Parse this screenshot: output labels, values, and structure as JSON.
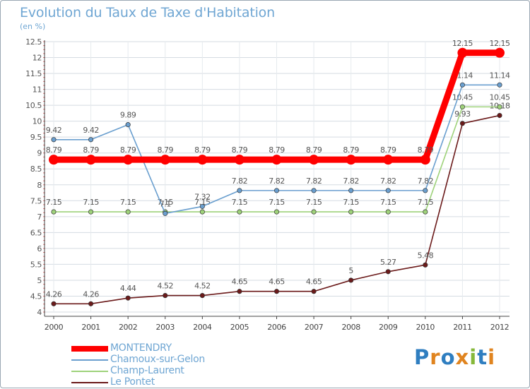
{
  "title": "Evolution du Taux de Taxe d'Habitation",
  "subtitle": "(en %)",
  "brand": {
    "letters": [
      "P",
      "r",
      "o",
      "x",
      "i",
      "t",
      "i"
    ],
    "colors": [
      "#2f7ec0",
      "#e0841f",
      "#2f7ec0",
      "#e0841f",
      "#86b83a",
      "#2f7ec0",
      "#e0841f"
    ]
  },
  "chart_data": {
    "type": "line",
    "x": [
      "2000",
      "2001",
      "2002",
      "2003",
      "2004",
      "2005",
      "2006",
      "2007",
      "2008",
      "2009",
      "2010",
      "2011",
      "2012"
    ],
    "ylim": [
      4,
      12.5
    ],
    "yticks": [
      "4",
      "4.5",
      "5",
      "5.5",
      "6",
      "6.5",
      "7",
      "7.5",
      "8",
      "8.5",
      "9",
      "9.5",
      "10",
      "10.5",
      "11",
      "11.5",
      "12",
      "12.5"
    ],
    "grid": true,
    "legend_position": "bottom-left",
    "series": [
      {
        "name": "Le Pontet",
        "color": "#6b1a1a",
        "values": [
          4.26,
          4.26,
          4.44,
          4.52,
          4.52,
          4.65,
          4.65,
          4.65,
          5,
          5.27,
          5.48,
          9.93,
          10.18
        ],
        "labels": [
          "4.26",
          "4.26",
          "4.44",
          "4.52",
          "4.52",
          "4.65",
          "4.65",
          "4.65",
          "5",
          "5.27",
          "5.48",
          "9.93",
          "10.18"
        ]
      },
      {
        "name": "Champ-Laurent",
        "color": "#9ed27a",
        "values": [
          7.15,
          7.15,
          7.15,
          7.15,
          7.15,
          7.15,
          7.15,
          7.15,
          7.15,
          7.15,
          7.15,
          10.45,
          10.45
        ],
        "labels": [
          "7.15",
          "7.15",
          "7.15",
          "7.15",
          "7.15",
          "7.15",
          "7.15",
          "7.15",
          "7.15",
          "7.15",
          "7.15",
          "10.45",
          "10.45"
        ]
      },
      {
        "name": "Chamoux-sur-Gelon",
        "color": "#6a9fcf",
        "values": [
          9.42,
          9.42,
          9.89,
          7.1,
          7.32,
          7.82,
          7.82,
          7.82,
          7.82,
          7.82,
          7.82,
          11.14,
          11.14
        ],
        "labels": [
          "9.42",
          "9.42",
          "9.89",
          "7.1",
          "7.32",
          "7.82",
          "7.82",
          "7.82",
          "7.82",
          "7.82",
          "7.82",
          "11.14",
          "11.14"
        ]
      },
      {
        "name": "MONTENDRY",
        "color": "#ff0000",
        "values": [
          8.79,
          8.79,
          8.79,
          8.79,
          8.79,
          8.79,
          8.79,
          8.79,
          8.79,
          8.79,
          8.79,
          12.15,
          12.15
        ],
        "labels": [
          "8.79",
          "8.79",
          "8.79",
          "8.79",
          "8.79",
          "8.79",
          "8.79",
          "8.79",
          "8.79",
          "8.79",
          "8.79",
          "12.15",
          "12.15"
        ]
      }
    ],
    "legend": [
      "MONTENDRY",
      "Chamoux-sur-Gelon",
      "Champ-Laurent",
      "Le Pontet"
    ]
  }
}
